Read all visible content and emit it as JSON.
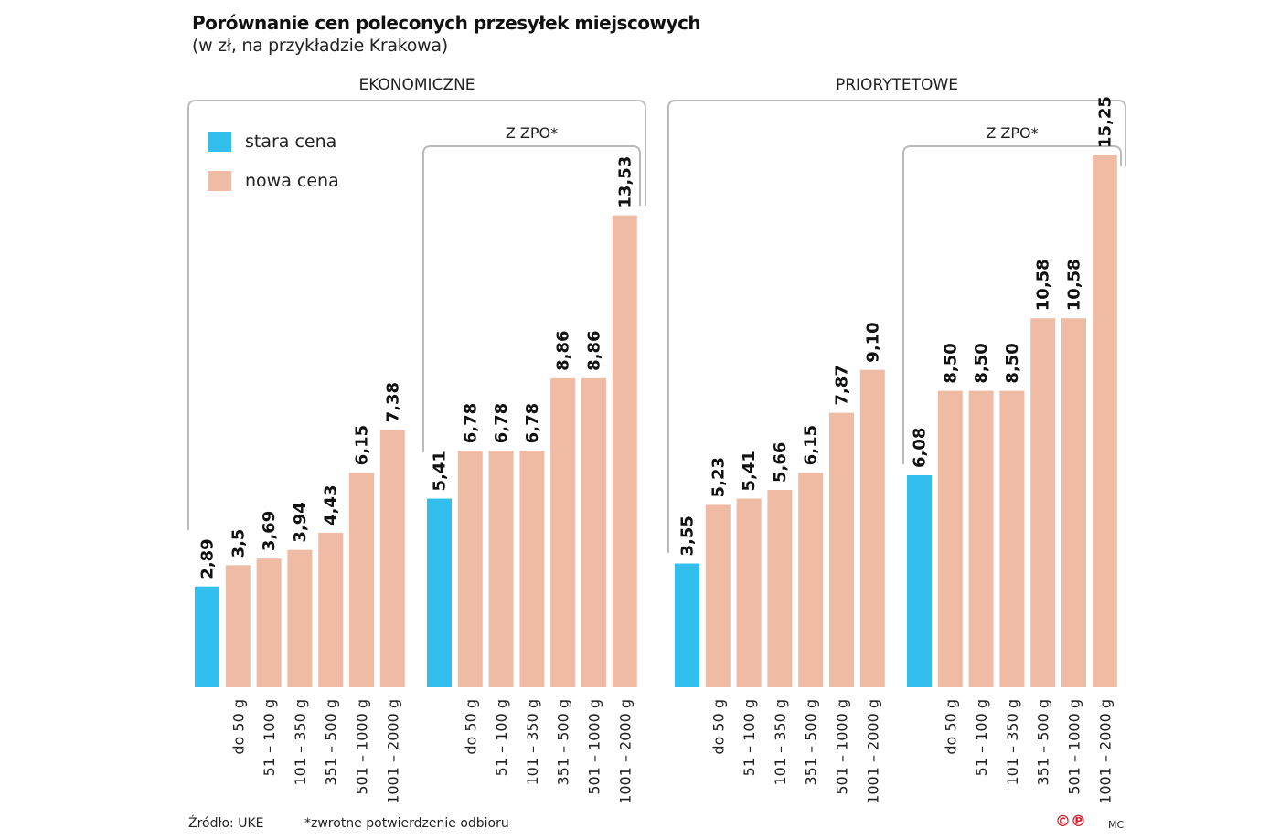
{
  "title": "Porównanie cen poleconych przesyłek miejscowych",
  "subtitle": "(w zł, na przykładzie Krakowa)",
  "colors": {
    "old": "#33bfee",
    "new": "#efbba5",
    "bracket": "#bbbbbb"
  },
  "footer": {
    "source": "Źródło: UKE",
    "note": "*zwrotne potwierdzenie odbioru",
    "author": "MC",
    "logo_text": "©℗"
  },
  "chart_data": {
    "type": "bar",
    "legend": {
      "position": "top-left",
      "entries": [
        {
          "name": "stara cena",
          "color": "#33bfee"
        },
        {
          "name": "nowa cena",
          "color": "#efbba5"
        }
      ]
    },
    "sections": [
      "EKONOMICZNE",
      "PRIORYTETOWE"
    ],
    "subgroup_label": "Z ZPO*",
    "categories": [
      "",
      "do 50 g",
      "51 – 100 g",
      "101 – 350 g",
      "351 – 500 g",
      "501 – 1000 g",
      "1001 – 2000 g"
    ],
    "groups": [
      {
        "section": "EKONOMICZNE",
        "zpo": false,
        "old": 2.89,
        "old_label": "2,89",
        "new": [
          3.5,
          3.69,
          3.94,
          4.43,
          6.15,
          7.38
        ],
        "new_labels": [
          "3,5",
          "3,69",
          "3,94",
          "4,43",
          "6,15",
          "7,38"
        ]
      },
      {
        "section": "EKONOMICZNE",
        "zpo": true,
        "old": 5.41,
        "old_label": "5,41",
        "new": [
          6.78,
          6.78,
          6.78,
          8.86,
          8.86,
          13.53
        ],
        "new_labels": [
          "6,78",
          "6,78",
          "6,78",
          "8,86",
          "8,86",
          "13,53"
        ]
      },
      {
        "section": "PRIORYTETOWE",
        "zpo": false,
        "old": 3.55,
        "old_label": "3,55",
        "new": [
          5.23,
          5.41,
          5.66,
          6.15,
          7.87,
          9.1
        ],
        "new_labels": [
          "5,23",
          "5,41",
          "5,66",
          "6,15",
          "7,87",
          "9,10"
        ]
      },
      {
        "section": "PRIORYTETOWE",
        "zpo": true,
        "old": 6.08,
        "old_label": "6,08",
        "new": [
          8.5,
          8.5,
          8.5,
          10.58,
          10.58,
          15.25
        ],
        "new_labels": [
          "8,50",
          "8,50",
          "8,50",
          "10,58",
          "10,58",
          "15,25"
        ]
      }
    ],
    "ylim": [
      0,
      15.25
    ],
    "grid": false
  }
}
